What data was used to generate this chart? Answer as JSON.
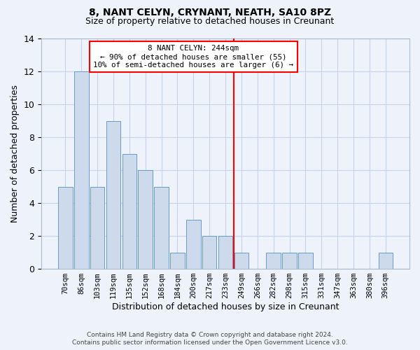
{
  "title1": "8, NANT CELYN, CRYNANT, NEATH, SA10 8PZ",
  "title2": "Size of property relative to detached houses in Creunant",
  "xlabel": "Distribution of detached houses by size in Creunant",
  "ylabel": "Number of detached properties",
  "footer1": "Contains HM Land Registry data © Crown copyright and database right 2024.",
  "footer2": "Contains public sector information licensed under the Open Government Licence v3.0.",
  "bin_labels": [
    "70sqm",
    "86sqm",
    "103sqm",
    "119sqm",
    "135sqm",
    "152sqm",
    "168sqm",
    "184sqm",
    "200sqm",
    "217sqm",
    "233sqm",
    "249sqm",
    "266sqm",
    "282sqm",
    "298sqm",
    "315sqm",
    "331sqm",
    "347sqm",
    "363sqm",
    "380sqm",
    "396sqm"
  ],
  "bar_values": [
    5,
    12,
    5,
    9,
    7,
    6,
    5,
    1,
    3,
    2,
    2,
    1,
    0,
    1,
    1,
    1,
    0,
    0,
    0,
    0,
    1
  ],
  "bar_color": "#ccdaeb",
  "bar_edgecolor": "#6699cc",
  "vline_x_label": "249sqm",
  "vline_color": "red",
  "annotation_text": "8 NANT CELYN: 244sqm\n← 90% of detached houses are smaller (55)\n10% of semi-detached houses are larger (6) →",
  "ylim": [
    0,
    14
  ],
  "yticks": [
    0,
    2,
    4,
    6,
    8,
    10,
    12,
    14
  ],
  "grid_color": "#c8d4e8",
  "background_color": "#edf2fb"
}
